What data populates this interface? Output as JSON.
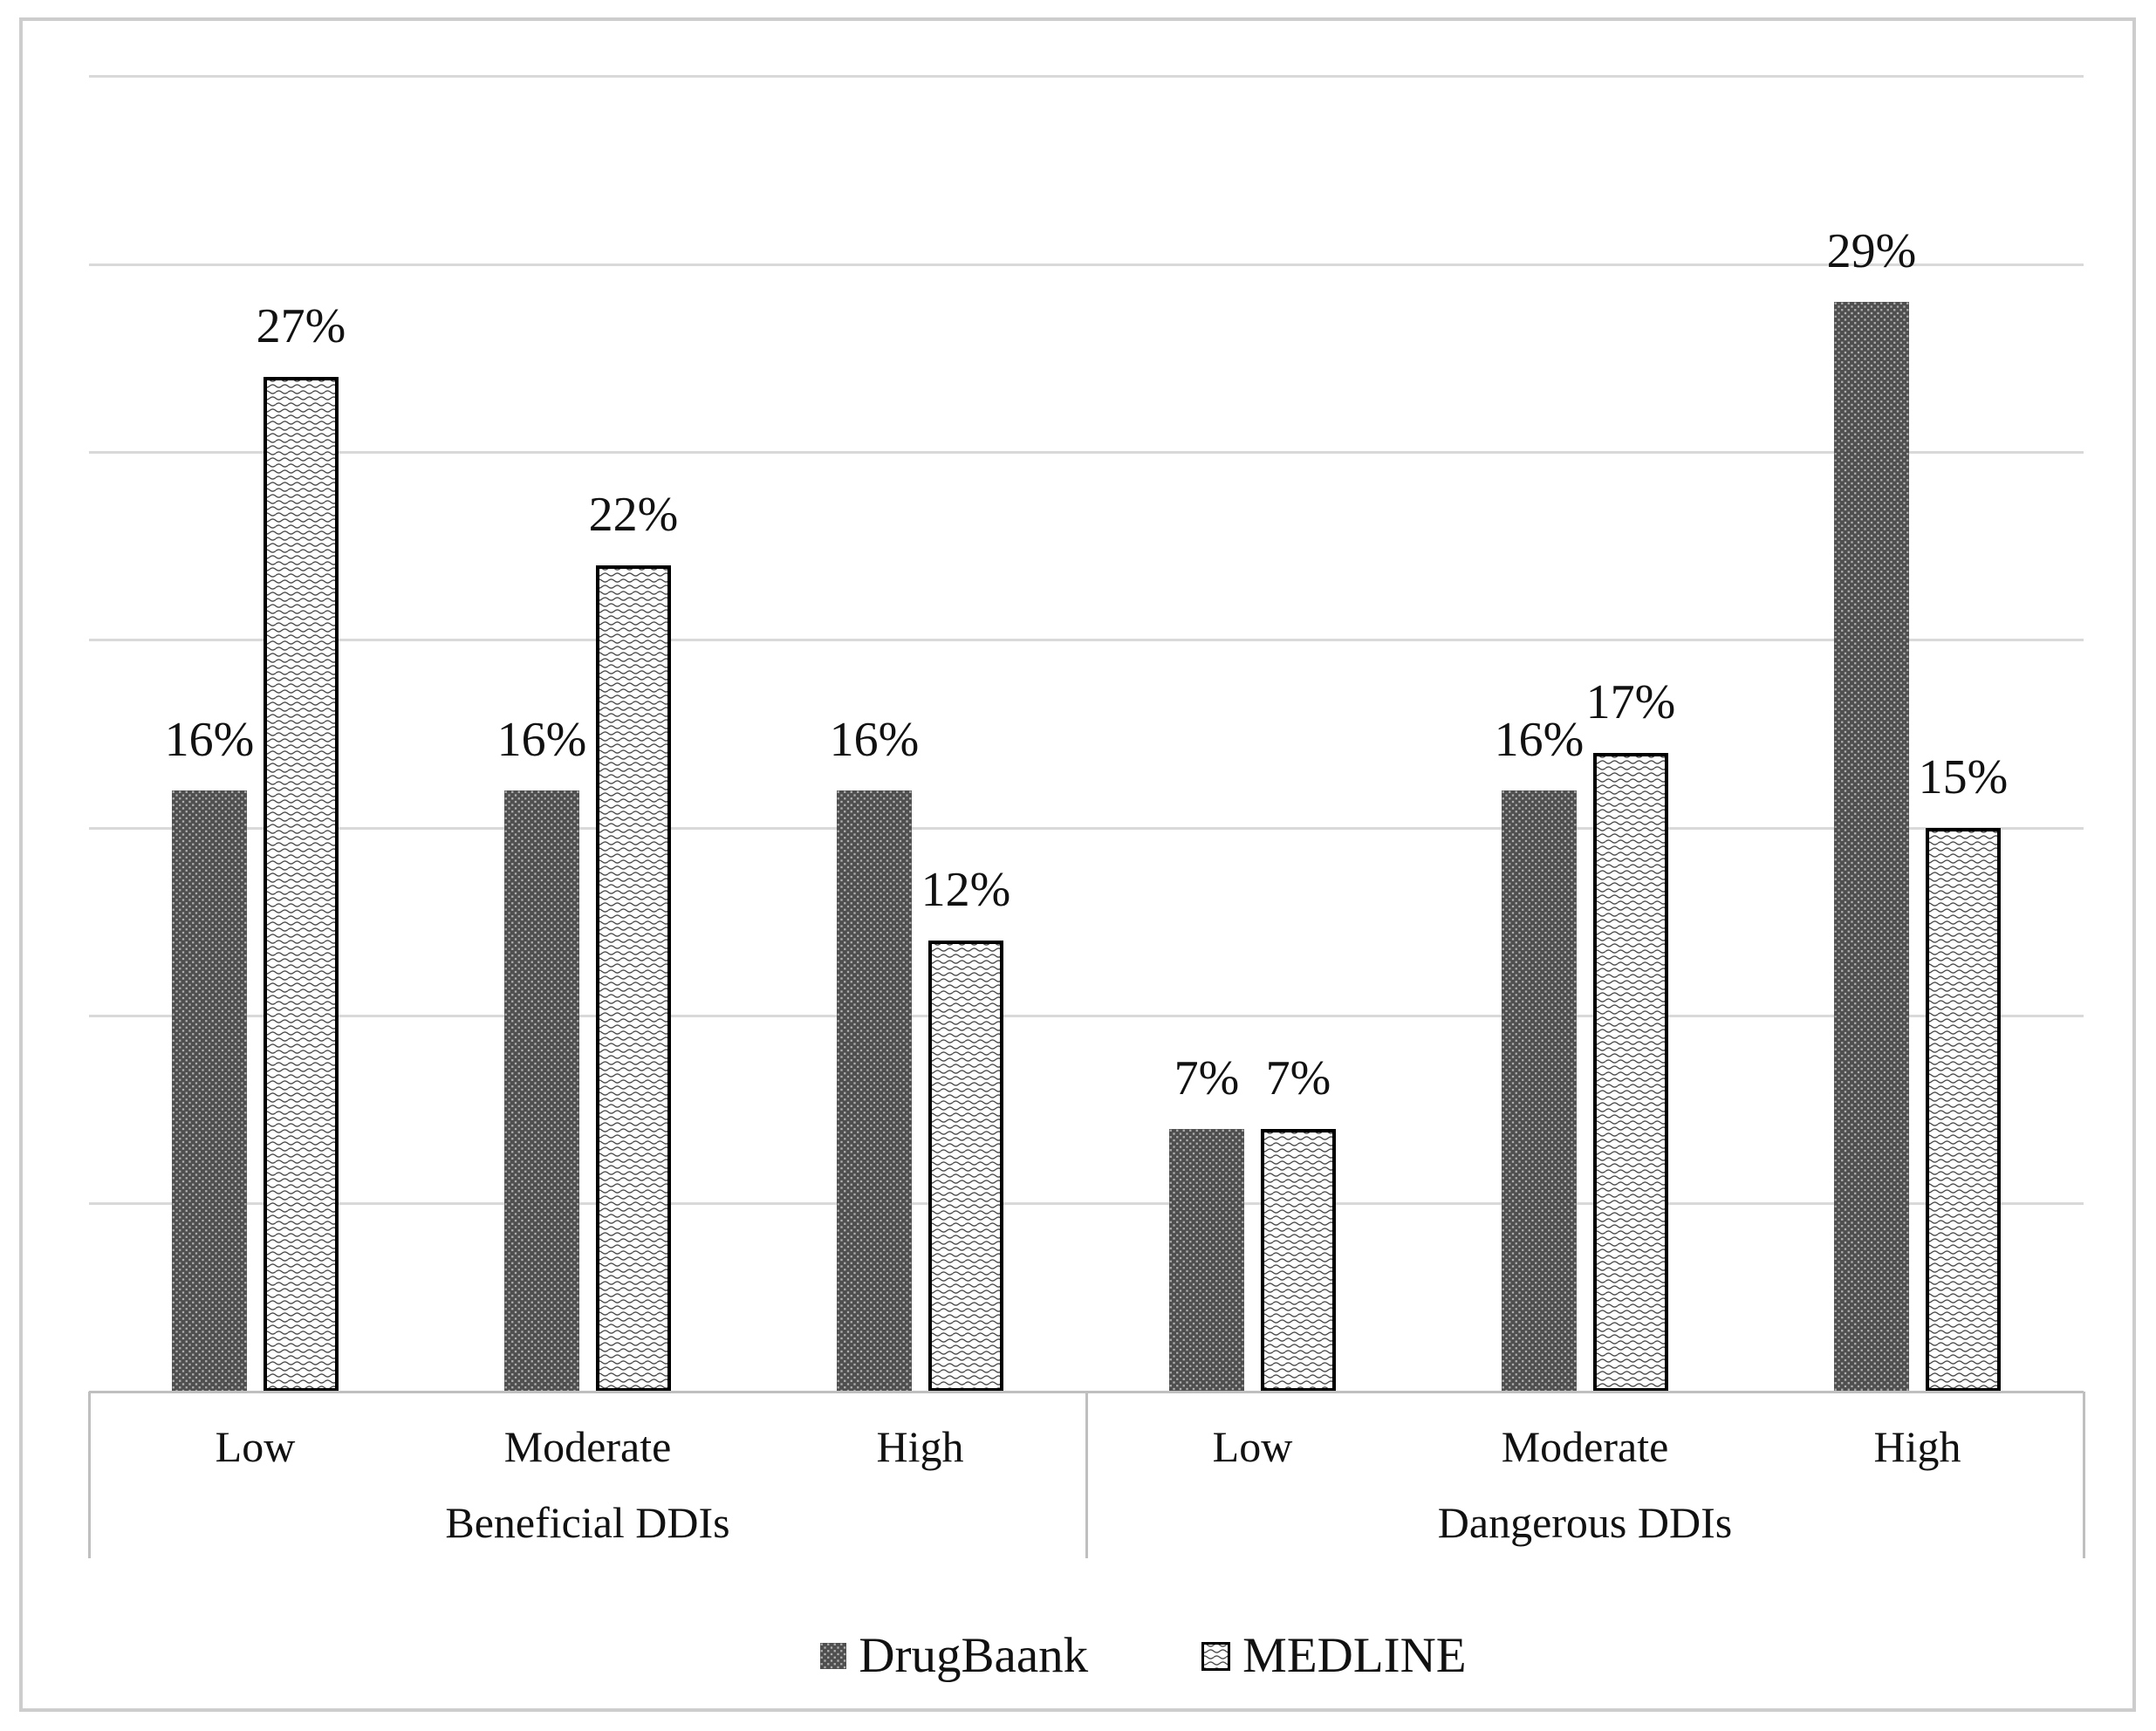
{
  "figure": {
    "background": "#ffffff",
    "border_color": "#cdcdcd"
  },
  "chart_data": {
    "type": "bar",
    "title": "",
    "xlabel": "",
    "ylabel": "",
    "group_labels": [
      "Beneficial DDIs",
      "Dangerous DDIs"
    ],
    "categories": [
      "Low",
      "Moderate",
      "High",
      "Low",
      "Moderate",
      "High"
    ],
    "series": [
      {
        "name": "DrugBaank",
        "pattern": "dots",
        "values": [
          16,
          16,
          16,
          7,
          16,
          29
        ],
        "labels": [
          "16%",
          "16%",
          "16%",
          "7%",
          "16%",
          "29%"
        ]
      },
      {
        "name": "MEDLINE",
        "pattern": "wave",
        "values": [
          27,
          22,
          12,
          7,
          17,
          15
        ],
        "labels": [
          "27%",
          "22%",
          "12%",
          "7%",
          "17%",
          "15%"
        ]
      }
    ],
    "ylim": [
      0,
      35
    ],
    "gridline_step": 5,
    "grid": true,
    "y_axis_labels_visible": false,
    "legend_position": "bottom",
    "colors": {
      "dark_fill": "#4f4f4f",
      "dark_dot": "#b0b0b0",
      "wave_stroke": "#4a4a4a",
      "wave_bg": "#ffffff",
      "bar_border": "#000000",
      "gridline": "#d9d9d9",
      "axis_line": "#bfbfbf",
      "label_text": "#111111"
    }
  }
}
